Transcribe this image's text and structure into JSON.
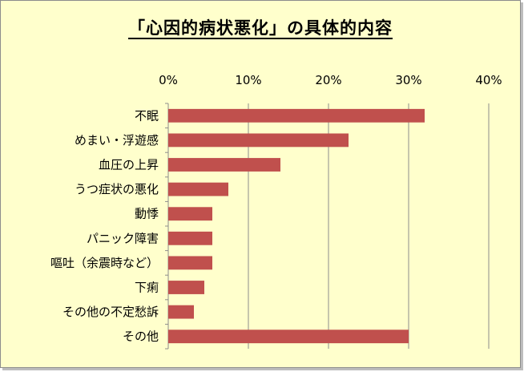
{
  "chart_data": {
    "type": "bar",
    "orientation": "horizontal",
    "title": "「心因的病状悪化」の具体的内容",
    "xlabel": "",
    "ylabel": "",
    "xlim": [
      0,
      40
    ],
    "unit": "%",
    "x_ticks": [
      "0%",
      "10%",
      "20%",
      "30%",
      "40%"
    ],
    "x_tick_values": [
      0,
      10,
      20,
      30,
      40
    ],
    "axis_position": "top",
    "grid": true,
    "legend": "none",
    "categories": [
      "不眠",
      "めまい・浮遊感",
      "血圧の上昇",
      "うつ症状の悪化",
      "動悸",
      "パニック障害",
      "嘔吐（余震時など）",
      "下痢",
      "その他の不定愁訴",
      "その他"
    ],
    "series": [
      {
        "values": [
          32,
          22.5,
          14,
          7.5,
          5.5,
          5.5,
          5.5,
          4.5,
          3.2,
          30
        ]
      }
    ],
    "colors": {
      "bar": "#c0504d",
      "background": "#ffffcc",
      "grid": "#8c8c8c"
    }
  }
}
